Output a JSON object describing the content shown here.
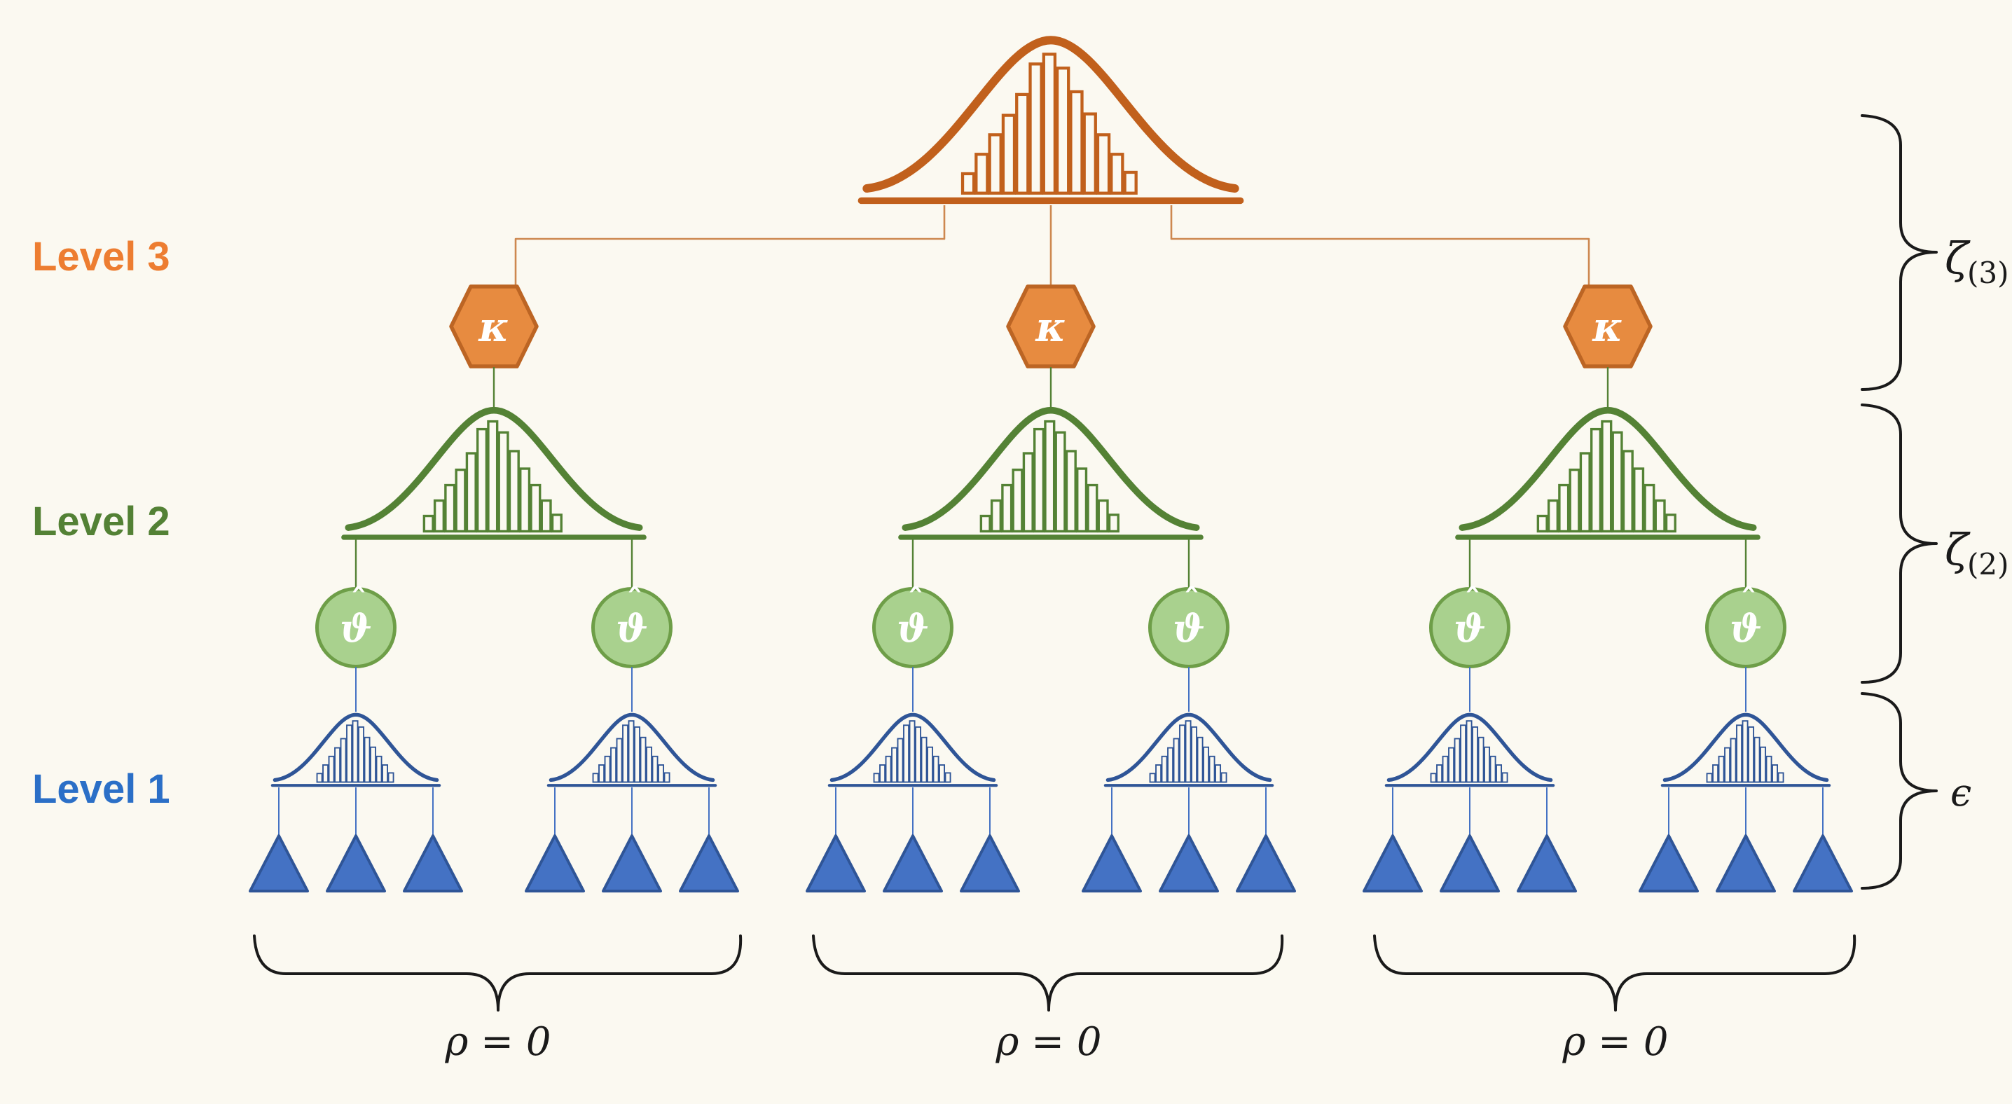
{
  "figure": {
    "background": "#FBF9F1",
    "levels": [
      {
        "id": "level-3",
        "label": "Level 3",
        "color": "#ED7D31"
      },
      {
        "id": "level-2",
        "label": "Level 2",
        "color": "#538135"
      },
      {
        "id": "level-1",
        "label": "Level 1",
        "color": "#2B6FC7"
      }
    ],
    "node_symbols": {
      "kappa": "κ",
      "theta_hat_base": "ϑ",
      "theta_hat_accent": "ˆ"
    },
    "right_braces": [
      {
        "symbol": "ζ",
        "subscript": "(3)"
      },
      {
        "symbol": "ζ",
        "subscript": "(2)"
      },
      {
        "symbol": "ϵ",
        "subscript": ""
      }
    ],
    "bottom_braces": [
      {
        "label": "ρ = 0"
      },
      {
        "label": "ρ = 0"
      },
      {
        "label": "ρ = 0"
      }
    ],
    "colors": {
      "orange_line": "#C1601C",
      "orange_fill": "#E78B40",
      "orange_border": "#BC6524",
      "orange_connector": "#CD8850",
      "green_line": "#548235",
      "green_fill": "#A9D18E",
      "green_border": "#6E9E48",
      "blue_line": "#2F5597",
      "blue_fill": "#4472C4",
      "blue_connector": "#4472C4",
      "brace_color": "#1A1A1A"
    },
    "histogram_bar_heights": [
      0.14,
      0.28,
      0.42,
      0.56,
      0.71,
      0.93,
      1.0,
      0.9,
      0.73,
      0.57,
      0.42,
      0.28,
      0.15
    ]
  }
}
